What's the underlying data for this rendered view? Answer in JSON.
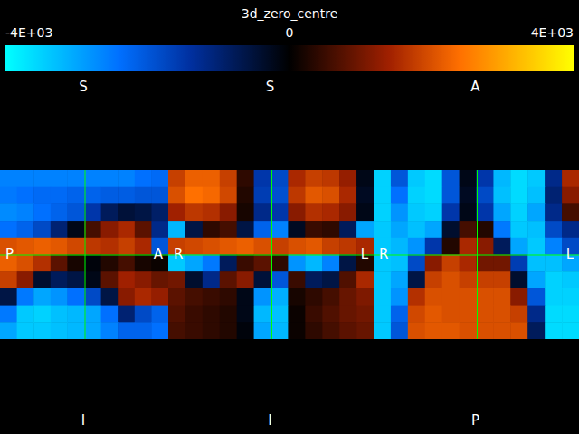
{
  "chart_data": {
    "type": "heatmap",
    "title": "3d_zero_centre",
    "colorbar": {
      "range": [
        -4000,
        4000
      ],
      "ticks": [
        {
          "value": -4000,
          "label": "-4E+03"
        },
        0,
        {
          "value": 4000,
          "label": "4E+03"
        }
      ]
    },
    "panels": [
      {
        "labels": {
          "top": "S",
          "bottom": "I",
          "left": "P",
          "right": "A"
        },
        "cells": [
          [
            -2600,
            -2600,
            -2600,
            -2600,
            -2600,
            -2600,
            -2600,
            -2600,
            -2400,
            -2300
          ],
          [
            -2500,
            -2400,
            -2300,
            -2300,
            -2200,
            -2200,
            -2100,
            -2100,
            -2000,
            -2000
          ],
          [
            -2700,
            -2600,
            -2400,
            -2200,
            -2000,
            -1500,
            -800,
            -500,
            -600,
            -900
          ],
          [
            -2400,
            -2200,
            -1800,
            -1000,
            -200,
            600,
            1200,
            1500,
            800,
            -1200
          ],
          [
            2000,
            2100,
            2200,
            2100,
            1900,
            1700,
            1600,
            1800,
            1500,
            -2000
          ],
          [
            2200,
            2000,
            1600,
            800,
            200,
            -100,
            300,
            600,
            200,
            100
          ],
          [
            1800,
            1200,
            -400,
            -800,
            -600,
            -200,
            800,
            1400,
            1200,
            900
          ],
          [
            -600,
            -2500,
            -3000,
            -2800,
            -2400,
            -1800,
            -600,
            1200,
            1500,
            1300
          ],
          [
            -2500,
            -3400,
            -3500,
            -3300,
            -3200,
            -3000,
            -2400,
            -1000,
            -1800,
            -2200
          ],
          [
            -3000,
            -3400,
            -3400,
            -3300,
            -3200,
            -3000,
            -2600,
            -2200,
            -2200,
            -2400
          ]
        ]
      },
      {
        "labels": {
          "top": "S",
          "bottom": "I",
          "left": "R",
          "right": "L"
        },
        "cells": [
          [
            1800,
            2200,
            2200,
            1800,
            400,
            -1500,
            -1800,
            1500,
            1800,
            1700,
            1300,
            -200
          ],
          [
            2000,
            2400,
            2300,
            1900,
            300,
            -1600,
            -1900,
            1700,
            2100,
            2000,
            1500,
            -300
          ],
          [
            1400,
            1700,
            1600,
            1200,
            200,
            -1200,
            -1500,
            1200,
            1600,
            1500,
            1200,
            -200
          ],
          [
            -3200,
            -600,
            400,
            600,
            -600,
            -2200,
            -2600,
            -300,
            500,
            400,
            -800,
            -3000
          ],
          [
            1800,
            1900,
            2000,
            2100,
            2200,
            2000,
            1800,
            2000,
            2100,
            1800,
            1700,
            1500
          ],
          [
            -3400,
            -3000,
            -2500,
            -800,
            500,
            800,
            400,
            -2800,
            -3200,
            -2600,
            -600,
            300
          ],
          [
            1000,
            -400,
            -1200,
            800,
            1200,
            -500,
            -2000,
            500,
            -800,
            -600,
            700,
            1500
          ],
          [
            800,
            600,
            500,
            400,
            -200,
            -2800,
            -3100,
            200,
            400,
            600,
            900,
            1100
          ],
          [
            700,
            500,
            400,
            300,
            -200,
            -3200,
            -3300,
            100,
            500,
            700,
            900,
            1000
          ],
          [
            600,
            500,
            400,
            300,
            -100,
            -3000,
            -3200,
            100,
            400,
            600,
            800,
            900
          ]
        ]
      },
      {
        "labels": {
          "top": "A",
          "bottom": "P",
          "left": "R",
          "right": "L"
        },
        "cells": [
          [
            -3500,
            -2000,
            -3400,
            -3600,
            -2000,
            -200,
            -1500,
            -3200,
            -3600,
            -3400,
            -1200,
            1500
          ],
          [
            -3500,
            -2400,
            -3500,
            -3600,
            -2000,
            -300,
            -1800,
            -3300,
            -3600,
            -3300,
            -1000,
            1200
          ],
          [
            -3500,
            -2800,
            -3400,
            -3500,
            -1500,
            -200,
            -1500,
            -3000,
            -3500,
            -3000,
            -1200,
            600
          ],
          [
            -3400,
            -3000,
            -3300,
            -3000,
            -400,
            600,
            300,
            -2500,
            -3400,
            -3300,
            -1800,
            -1200
          ],
          [
            -3400,
            -3200,
            -2800,
            -1500,
            300,
            1500,
            1200,
            -800,
            -3000,
            -3400,
            -2600,
            -1800
          ],
          [
            -3400,
            -3300,
            -1800,
            1200,
            1800,
            1500,
            1000,
            1000,
            -1600,
            -3300,
            -3300,
            -3000
          ],
          [
            -3400,
            -3000,
            -600,
            1800,
            2000,
            1800,
            1800,
            1800,
            -400,
            -3000,
            -3500,
            -3400
          ],
          [
            -3400,
            -2800,
            1600,
            2000,
            2000,
            2000,
            2000,
            2000,
            1200,
            -2000,
            -3500,
            -3500
          ],
          [
            -3400,
            -2200,
            1900,
            2100,
            2000,
            2000,
            2000,
            2000,
            1800,
            -1200,
            -3600,
            -3600
          ],
          [
            -3400,
            -2000,
            2000,
            2100,
            2100,
            2000,
            2000,
            2000,
            2000,
            -800,
            -3600,
            -3600
          ]
        ]
      }
    ]
  }
}
